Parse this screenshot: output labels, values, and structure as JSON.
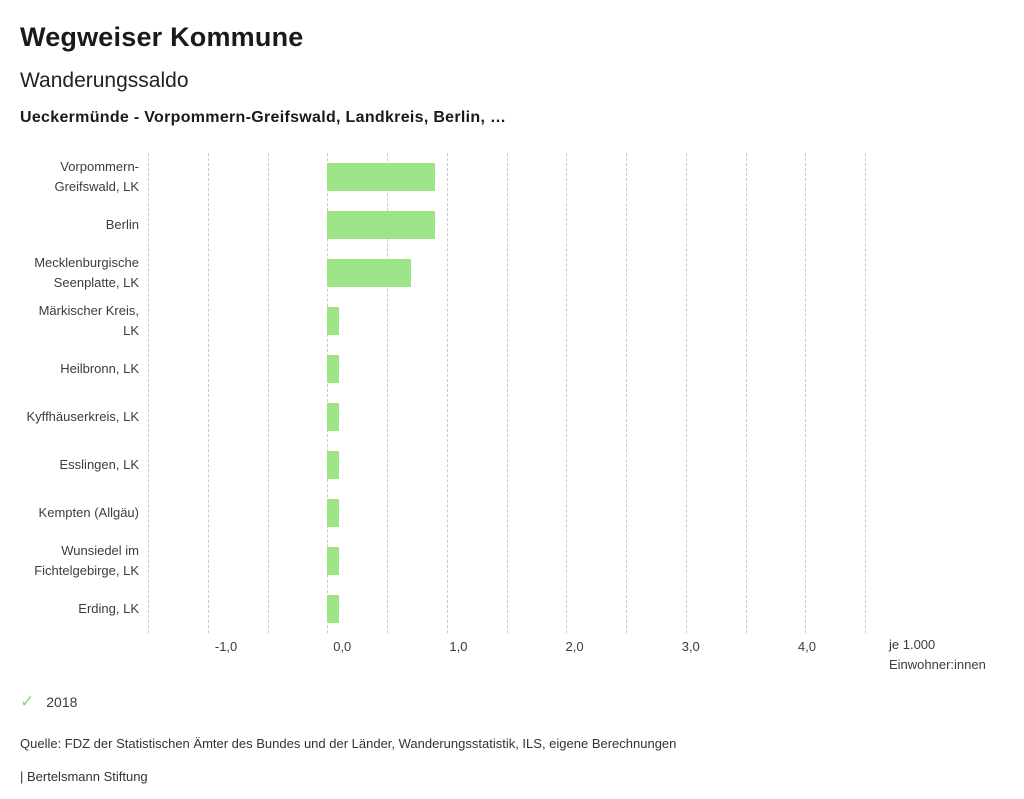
{
  "header": {
    "title": "Wegweiser Kommune",
    "subtitle": "Wanderungssaldo",
    "selection": "Ueckermünde - Vorpommern-Greifswald, Landkreis, Berlin, …"
  },
  "chart_data": {
    "type": "bar",
    "orientation": "horizontal",
    "title": "Wanderungssaldo",
    "categories": [
      "Vorpommern-Greifswald, LK",
      "Berlin",
      "Mecklenburgische Seenplatte, LK",
      "Märkischer Kreis, LK",
      "Heilbronn, LK",
      "Kyffhäuserkreis, LK",
      "Esslingen, LK",
      "Kempten (Allgäu)",
      "Wunsiedel im Fichtelgebirge, LK",
      "Erding, LK"
    ],
    "series": [
      {
        "name": "2018",
        "values": [
          0.9,
          0.9,
          0.7,
          0.1,
          0.1,
          0.1,
          0.1,
          0.1,
          0.1,
          0.1
        ]
      }
    ],
    "xlim": [
      -1.5,
      4.5
    ],
    "grid_step": 0.5,
    "x_ticks": [
      -1.0,
      0.0,
      1.0,
      2.0,
      3.0,
      4.0
    ],
    "x_tick_labels": [
      "-1,0",
      "0,0",
      "1,0",
      "2,0",
      "3,0",
      "4,0"
    ],
    "unit_line1": "je 1.000",
    "unit_line2": "Einwohner:innen",
    "bar_color": "#9ce487",
    "grid": "dashed-vertical",
    "legend_position": "bottom-left"
  },
  "legend": {
    "marker": "check-icon",
    "marker_color": "#8bd977",
    "label": "2018"
  },
  "footer": {
    "source": "Quelle: FDZ der Statistischen Ämter des Bundes und der Länder, Wanderungsstatistik, ILS, eigene Berechnungen",
    "branding": "| Bertelsmann Stiftung"
  }
}
